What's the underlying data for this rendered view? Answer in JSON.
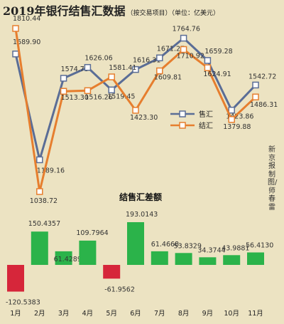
{
  "title": "2019年银行结售汇数据",
  "title_note": "（按交易项目）（单位：亿美元）",
  "subtitle": "结售汇差额",
  "credit": "新京报制图/师春雷",
  "colors": {
    "sales": "#5a6d96",
    "purchases": "#e67e2e",
    "positive": "#2bb34a",
    "negative": "#d6263a"
  },
  "chart_data": [
    {
      "type": "line",
      "categories": [
        "1月",
        "2月",
        "3月",
        "4月",
        "5月",
        "6月",
        "7月",
        "8月",
        "9月",
        "10月",
        "11月"
      ],
      "series": [
        {
          "name": "售汇",
          "values": [
            1689.9,
            1189.16,
            1574.73,
            1626.06,
            1519.45,
            1616.31,
            1671.27,
            1764.76,
            1659.28,
            1423.86,
            1542.72
          ]
        },
        {
          "name": "结汇",
          "values": [
            1810.44,
            1038.72,
            1513.3,
            1516.26,
            1581.41,
            1423.3,
            1609.81,
            1710.92,
            1624.91,
            1379.88,
            1486.31
          ]
        }
      ],
      "legend": "right"
    },
    {
      "type": "bar",
      "title": "结售汇差额",
      "categories": [
        "1月",
        "2月",
        "3月",
        "4月",
        "5月",
        "6月",
        "7月",
        "8月",
        "9月",
        "10月",
        "11月"
      ],
      "values": [
        -120.5383,
        150.4357,
        61.4289,
        109.7964,
        -61.9562,
        193.0143,
        61.4668,
        53.8329,
        34.3744,
        43.9881,
        56.413
      ]
    }
  ]
}
